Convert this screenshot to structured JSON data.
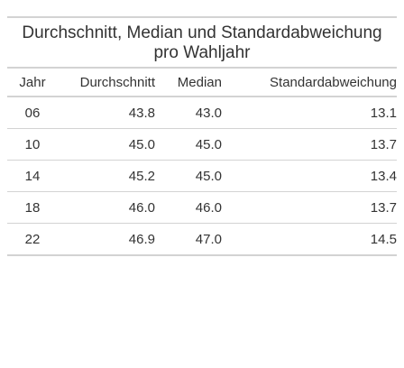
{
  "table": {
    "title_line1": "Durchschnitt, Median und Standardabweichung",
    "title_line2": "pro Wahljahr",
    "columns": [
      "Jahr",
      "Durchschnitt",
      "Median",
      "Standardabweichung"
    ],
    "rows": [
      [
        "06",
        "43.8",
        "43.0",
        "13.1"
      ],
      [
        "10",
        "45.0",
        "45.0",
        "13.7"
      ],
      [
        "14",
        "45.2",
        "45.0",
        "13.4"
      ],
      [
        "18",
        "46.0",
        "46.0",
        "13.7"
      ],
      [
        "22",
        "46.9",
        "47.0",
        "14.5"
      ]
    ]
  }
}
